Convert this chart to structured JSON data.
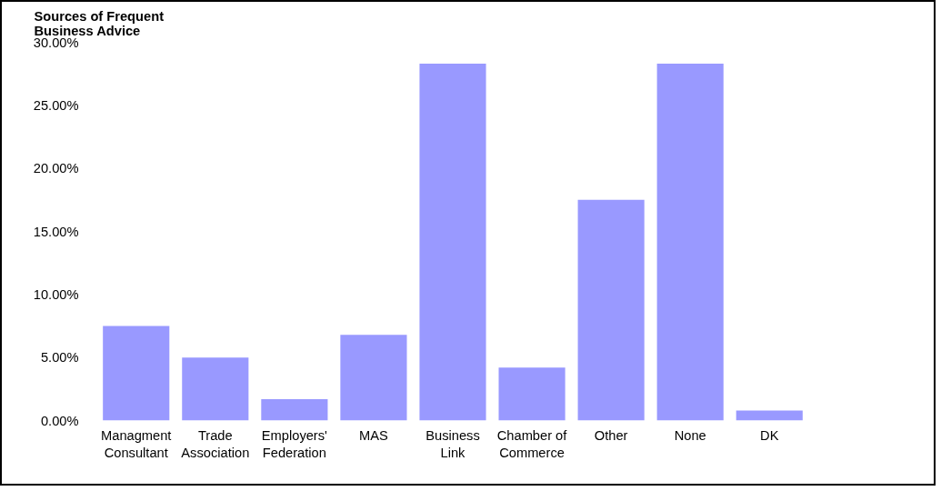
{
  "chart_data": {
    "type": "bar",
    "title": "Sources of Frequent Business Advice",
    "categories": [
      "Managment Consultant",
      "Trade Association",
      "Employers' Federation",
      "MAS",
      "Business Link",
      "Chamber of Commerce",
      "Other",
      "None",
      "DK"
    ],
    "values": [
      7.5,
      5.0,
      1.7,
      6.8,
      28.3,
      4.2,
      17.5,
      28.3,
      0.8
    ],
    "color": "#9999ff",
    "ylim": [
      0,
      30
    ],
    "yticks": [
      {
        "value": 0,
        "label": "0.00%"
      },
      {
        "value": 5,
        "label": "5.00%"
      },
      {
        "value": 10,
        "label": "10.00%"
      },
      {
        "value": 15,
        "label": "15.00%"
      },
      {
        "value": 20,
        "label": "20.00%"
      },
      {
        "value": 25,
        "label": "25.00%"
      },
      {
        "value": 30,
        "label": "30.00%"
      }
    ],
    "grid": false
  }
}
